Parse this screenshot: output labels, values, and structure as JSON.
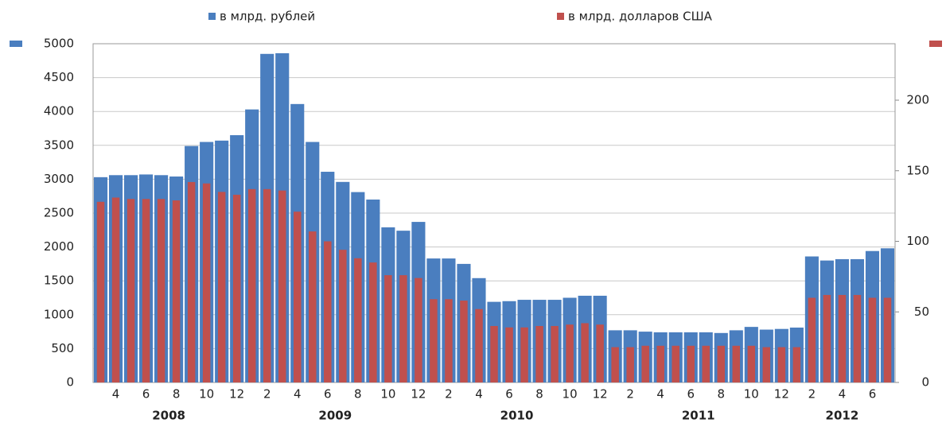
{
  "chart_data": {
    "type": "bar",
    "categories": [
      null,
      "4",
      null,
      "6",
      null,
      "8",
      null,
      "10",
      null,
      "12",
      null,
      "2",
      null,
      "4",
      null,
      "6",
      null,
      "8",
      null,
      "10",
      null,
      "12",
      null,
      "2",
      null,
      "4",
      null,
      "6",
      null,
      "8",
      null,
      "10",
      null,
      "12",
      null,
      "2",
      null,
      "4",
      null,
      "6",
      null,
      "8",
      null,
      "10",
      null,
      "12",
      null,
      "2",
      null,
      "4",
      null,
      "6",
      null
    ],
    "years": [
      "2008",
      "2009",
      "2010",
      "2011",
      "2012"
    ],
    "series": [
      {
        "name": "в млрд. рублей",
        "color": "#4a7ebf",
        "values": [
          3030,
          3060,
          3060,
          3070,
          3060,
          3040,
          3490,
          3550,
          3570,
          3650,
          4030,
          4850,
          4860,
          4110,
          3550,
          3110,
          2960,
          2810,
          2700,
          2290,
          2240,
          2370,
          1830,
          1830,
          1750,
          1540,
          1190,
          1200,
          1220,
          1220,
          1220,
          1250,
          1280,
          1280,
          770,
          770,
          750,
          740,
          740,
          740,
          740,
          730,
          770,
          820,
          780,
          790,
          810,
          1860,
          1800,
          1820,
          1820,
          1940,
          1980
        ]
      },
      {
        "name": "в млрд. долларов США",
        "color": "#c0504d",
        "axis": "y2",
        "values": [
          128,
          131,
          130,
          130,
          130,
          129,
          142,
          141,
          135,
          133,
          137,
          137,
          136,
          121,
          107,
          100,
          94,
          88,
          85,
          76,
          76,
          74,
          59,
          59,
          58,
          52,
          40,
          39,
          39,
          40,
          40,
          41,
          42,
          41,
          25,
          25,
          26,
          26,
          26,
          26,
          26,
          26,
          26,
          26,
          25,
          25,
          25,
          60,
          62,
          62,
          62,
          60,
          60
        ]
      }
    ],
    "ylim": [
      0,
      5000
    ],
    "yticks": [
      0,
      500,
      1000,
      1500,
      2000,
      2500,
      3000,
      3500,
      4000,
      4500,
      5000
    ],
    "y2lim": [
      0,
      240
    ],
    "y2ticks": [
      0,
      50,
      100,
      150,
      200
    ],
    "grid": true
  }
}
